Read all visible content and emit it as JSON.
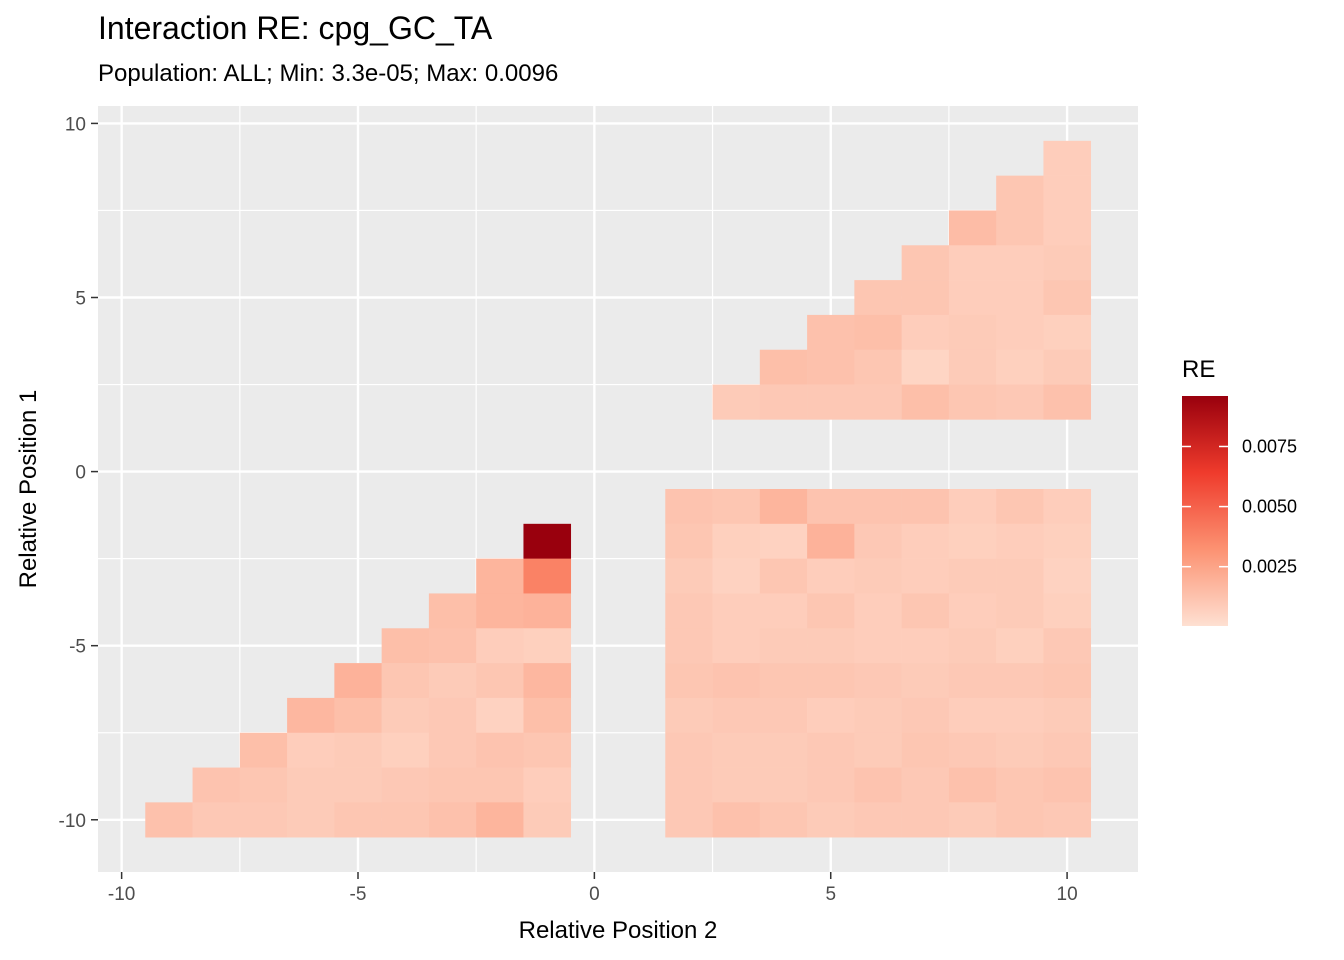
{
  "chart_data": {
    "type": "heatmap",
    "title": "Interaction RE: cpg_GC_TA",
    "subtitle": "Population: ALL; Min: 3.3e-05; Max: 0.0096",
    "xlabel": "Relative Position 2",
    "ylabel": "Relative Position 1",
    "xlim": [
      -10.5,
      11.5
    ],
    "ylim": [
      -11.5,
      10.5
    ],
    "x_ticks": [
      -10,
      -5,
      0,
      5,
      10
    ],
    "x_tick_labels": [
      "-10",
      "-5",
      "0",
      "5",
      "10"
    ],
    "y_ticks": [
      10,
      5,
      0,
      -5,
      -10
    ],
    "y_tick_labels": [
      "10",
      "5",
      "0",
      "-5",
      "-10"
    ],
    "grid": true,
    "legend": {
      "title": "RE",
      "placement": "right",
      "min": 3.3e-05,
      "max": 0.0096,
      "ticks": [
        0.0025,
        0.005,
        0.0075
      ],
      "tick_labels": [
        "0.0025",
        "0.0050",
        "0.0075"
      ],
      "colors": [
        "#FEE0D2",
        "#FC9272",
        "#EF3B2C",
        "#99000D"
      ]
    },
    "cells": [
      {
        "y": 9,
        "values": [
          [
            10,
            0.0008
          ]
        ]
      },
      {
        "y": 8,
        "values": [
          [
            9,
            0.0011
          ],
          [
            10,
            0.0008
          ]
        ]
      },
      {
        "y": 7,
        "values": [
          [
            8,
            0.0015
          ],
          [
            9,
            0.0011
          ],
          [
            10,
            0.0008
          ]
        ]
      },
      {
        "y": 6,
        "values": [
          [
            7,
            0.0011
          ],
          [
            8,
            0.0008
          ],
          [
            9,
            0.0008
          ],
          [
            10,
            0.0009
          ]
        ]
      },
      {
        "y": 5,
        "values": [
          [
            6,
            0.0011
          ],
          [
            7,
            0.0011
          ],
          [
            8,
            0.0008
          ],
          [
            9,
            0.0008
          ],
          [
            10,
            0.0011
          ]
        ]
      },
      {
        "y": 4,
        "values": [
          [
            5,
            0.0013
          ],
          [
            6,
            0.0014
          ],
          [
            7,
            0.0008
          ],
          [
            8,
            0.0009
          ],
          [
            9,
            0.0008
          ],
          [
            10,
            0.0007
          ]
        ]
      },
      {
        "y": 3,
        "values": [
          [
            4,
            0.0014
          ],
          [
            5,
            0.0013
          ],
          [
            6,
            0.0011
          ],
          [
            7,
            0.0005
          ],
          [
            8,
            0.0009
          ],
          [
            9,
            0.0007
          ],
          [
            10,
            0.0009
          ]
        ]
      },
      {
        "y": 2,
        "values": [
          [
            3,
            0.0009
          ],
          [
            4,
            0.001
          ],
          [
            5,
            0.001
          ],
          [
            6,
            0.001
          ],
          [
            7,
            0.0014
          ],
          [
            8,
            0.0011
          ],
          [
            9,
            0.001
          ],
          [
            10,
            0.0013
          ]
        ]
      },
      {
        "y": -1,
        "values": [
          [
            2,
            0.0012
          ],
          [
            3,
            0.0011
          ],
          [
            4,
            0.0018
          ],
          [
            5,
            0.0012
          ],
          [
            6,
            0.0012
          ],
          [
            7,
            0.0012
          ],
          [
            8,
            0.0008
          ],
          [
            9,
            0.0011
          ],
          [
            10,
            0.0008
          ]
        ]
      },
      {
        "y": -2,
        "values": [
          [
            -1,
            0.0096
          ],
          [
            2,
            0.0011
          ],
          [
            3,
            0.0007
          ],
          [
            4,
            0.0006
          ],
          [
            5,
            0.0019
          ],
          [
            6,
            0.001
          ],
          [
            7,
            0.0008
          ],
          [
            8,
            0.0007
          ],
          [
            9,
            0.0008
          ],
          [
            10,
            0.0007
          ]
        ]
      },
      {
        "y": -3,
        "values": [
          [
            -2,
            0.0018
          ],
          [
            -1,
            0.0038
          ],
          [
            2,
            0.0009
          ],
          [
            3,
            0.0006
          ],
          [
            4,
            0.0011
          ],
          [
            5,
            0.0008
          ],
          [
            6,
            0.0009
          ],
          [
            7,
            0.0008
          ],
          [
            8,
            0.0009
          ],
          [
            9,
            0.0009
          ],
          [
            10,
            0.0006
          ]
        ]
      },
      {
        "y": -4,
        "values": [
          [
            -3,
            0.0014
          ],
          [
            -2,
            0.0018
          ],
          [
            -1,
            0.0019
          ],
          [
            2,
            0.001
          ],
          [
            3,
            0.0008
          ],
          [
            4,
            0.0008
          ],
          [
            5,
            0.0011
          ],
          [
            6,
            0.0008
          ],
          [
            7,
            0.0011
          ],
          [
            8,
            0.0008
          ],
          [
            9,
            0.0009
          ],
          [
            10,
            0.0007
          ]
        ]
      },
      {
        "y": -5,
        "values": [
          [
            -4,
            0.0014
          ],
          [
            -3,
            0.0013
          ],
          [
            -2,
            0.0008
          ],
          [
            -1,
            0.0007
          ],
          [
            2,
            0.001
          ],
          [
            3,
            0.0008
          ],
          [
            4,
            0.0009
          ],
          [
            5,
            0.0009
          ],
          [
            6,
            0.0008
          ],
          [
            7,
            0.0008
          ],
          [
            8,
            0.0009
          ],
          [
            9,
            0.0007
          ],
          [
            10,
            0.001
          ]
        ]
      },
      {
        "y": -6,
        "values": [
          [
            -5,
            0.0019
          ],
          [
            -4,
            0.0011
          ],
          [
            -3,
            0.0009
          ],
          [
            -2,
            0.0011
          ],
          [
            -1,
            0.0017
          ],
          [
            2,
            0.0011
          ],
          [
            3,
            0.0012
          ],
          [
            4,
            0.0011
          ],
          [
            5,
            0.0011
          ],
          [
            6,
            0.001
          ],
          [
            7,
            0.0009
          ],
          [
            8,
            0.001
          ],
          [
            9,
            0.001
          ],
          [
            10,
            0.0011
          ]
        ]
      },
      {
        "y": -7,
        "values": [
          [
            -6,
            0.0017
          ],
          [
            -5,
            0.0014
          ],
          [
            -4,
            0.0009
          ],
          [
            -3,
            0.001
          ],
          [
            -2,
            0.0006
          ],
          [
            -1,
            0.0014
          ],
          [
            2,
            0.0009
          ],
          [
            3,
            0.001
          ],
          [
            4,
            0.001
          ],
          [
            5,
            0.0008
          ],
          [
            6,
            0.0009
          ],
          [
            7,
            0.001
          ],
          [
            8,
            0.0008
          ],
          [
            9,
            0.0008
          ],
          [
            10,
            0.0009
          ]
        ]
      },
      {
        "y": -8,
        "values": [
          [
            -7,
            0.0014
          ],
          [
            -6,
            0.0008
          ],
          [
            -5,
            0.0009
          ],
          [
            -4,
            0.0007
          ],
          [
            -3,
            0.001
          ],
          [
            -2,
            0.0012
          ],
          [
            -1,
            0.0011
          ],
          [
            2,
            0.001
          ],
          [
            3,
            0.0009
          ],
          [
            4,
            0.0009
          ],
          [
            5,
            0.001
          ],
          [
            6,
            0.0009
          ],
          [
            7,
            0.0011
          ],
          [
            8,
            0.001
          ],
          [
            9,
            0.0009
          ],
          [
            10,
            0.001
          ]
        ]
      },
      {
        "y": -9,
        "values": [
          [
            -8,
            0.0012
          ],
          [
            -7,
            0.0011
          ],
          [
            -6,
            0.0009
          ],
          [
            -5,
            0.0009
          ],
          [
            -4,
            0.001
          ],
          [
            -3,
            0.0011
          ],
          [
            -2,
            0.0011
          ],
          [
            -1,
            0.0008
          ],
          [
            2,
            0.001
          ],
          [
            3,
            0.0009
          ],
          [
            4,
            0.0009
          ],
          [
            5,
            0.001
          ],
          [
            6,
            0.0012
          ],
          [
            7,
            0.001
          ],
          [
            8,
            0.0013
          ],
          [
            9,
            0.0011
          ],
          [
            10,
            0.0012
          ]
        ]
      },
      {
        "y": -10,
        "values": [
          [
            -9,
            0.0013
          ],
          [
            -8,
            0.001
          ],
          [
            -7,
            0.001
          ],
          [
            -6,
            0.0009
          ],
          [
            -5,
            0.0011
          ],
          [
            -4,
            0.0011
          ],
          [
            -3,
            0.0013
          ],
          [
            -2,
            0.0018
          ],
          [
            -1,
            0.0009
          ],
          [
            2,
            0.001
          ],
          [
            3,
            0.0013
          ],
          [
            4,
            0.0011
          ],
          [
            5,
            0.0009
          ],
          [
            6,
            0.001
          ],
          [
            7,
            0.001
          ],
          [
            8,
            0.0009
          ],
          [
            9,
            0.0011
          ],
          [
            10,
            0.001
          ]
        ]
      }
    ]
  }
}
